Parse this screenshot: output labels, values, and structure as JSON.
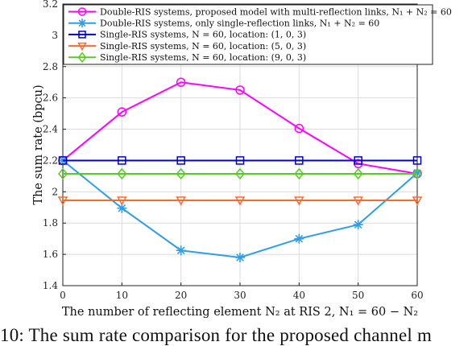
{
  "chart_data": {
    "type": "line",
    "xlabel": "The number of reflecting element N₂ at RIS 2, N₁ = 60 − N₂",
    "ylabel": "The sum rate (bpcu)",
    "xlim": [
      0,
      60
    ],
    "ylim": [
      1.4,
      3.2
    ],
    "x_ticks": [
      "0",
      "10",
      "20",
      "30",
      "40",
      "50",
      "60"
    ],
    "y_ticks": [
      "1.4",
      "1.6",
      "1.8",
      "2",
      "2.2",
      "2.4",
      "2.6",
      "2.8",
      "3",
      "3.2"
    ],
    "grid": true,
    "legend_position": "top-right",
    "x": [
      0,
      10,
      20,
      30,
      40,
      50,
      60
    ],
    "series": [
      {
        "name": "Double-RIS systems, proposed model with multi-reflection links, N₁ + N₂ = 60",
        "values": [
          2.2,
          2.51,
          2.7,
          2.65,
          2.405,
          2.18,
          2.115
        ],
        "color": "#ff00ff",
        "marker": "circle"
      },
      {
        "name": "Double-RIS systems, only single-reflection links, N₁ + N₂ = 60",
        "values": [
          2.2,
          1.895,
          1.625,
          1.58,
          1.7,
          1.79,
          2.12
        ],
        "color": "#2f9ee6",
        "marker": "star"
      },
      {
        "name": "Single-RIS systems, N = 60, location: (1, 0, 3)",
        "values": [
          2.2,
          2.2,
          2.2,
          2.2,
          2.2,
          2.2,
          2.2
        ],
        "color": "#0000cc",
        "marker": "square"
      },
      {
        "name": "Single-RIS systems, N = 60, location: (5, 0, 3)",
        "values": [
          1.945,
          1.945,
          1.945,
          1.945,
          1.945,
          1.945,
          1.945
        ],
        "color": "#ff6a2a",
        "marker": "triangle-down"
      },
      {
        "name": "Single-RIS systems, N = 60, location: (9, 0, 3)",
        "values": [
          2.115,
          2.115,
          2.115,
          2.115,
          2.115,
          2.115,
          2.115
        ],
        "color": "#55cc22",
        "marker": "diamond"
      }
    ]
  },
  "caption": "10: The sum rate comparison for the proposed channel m"
}
